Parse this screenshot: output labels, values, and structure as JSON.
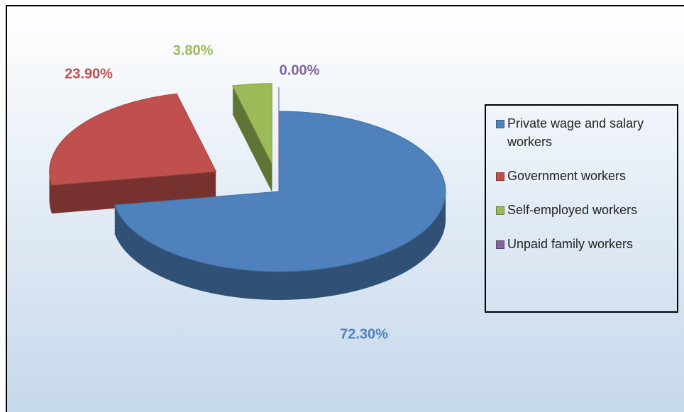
{
  "chart_data": {
    "type": "pie",
    "categories": [
      "Private wage and salary workers",
      "Government workers",
      "Self-employed workers",
      "Unpaid family workers"
    ],
    "values": [
      72.3,
      23.9,
      3.8,
      0.0
    ],
    "value_labels": [
      "72.30%",
      "23.90%",
      "3.80%",
      "0.00%"
    ],
    "colors": [
      "#4f81bd",
      "#c0504d",
      "#9bbb59",
      "#8064a2"
    ],
    "legend": "right"
  }
}
